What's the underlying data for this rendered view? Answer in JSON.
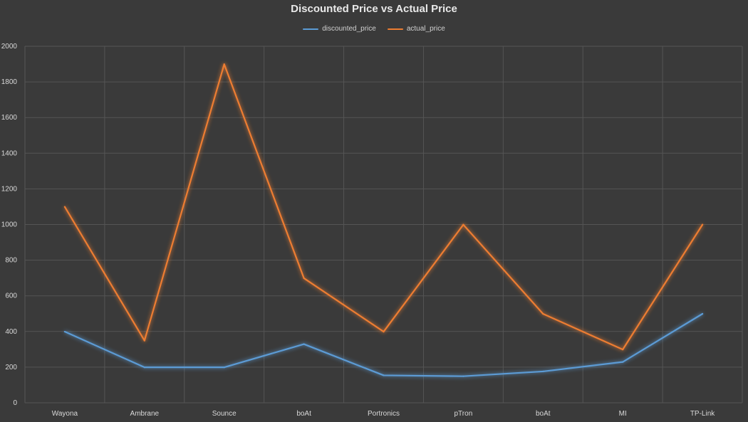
{
  "chart_data": {
    "type": "line",
    "title": "Discounted Price vs Actual Price",
    "xlabel": "",
    "ylabel": "",
    "categories": [
      "Wayona",
      "Ambrane",
      "Sounce",
      "boAt",
      "Portronics",
      "pTron",
      "boAt",
      "MI",
      "TP-Link"
    ],
    "series": [
      {
        "name": "discounted_price",
        "color": "#5b9bd5",
        "values": [
          399,
          199,
          199,
          329,
          154,
          149,
          176,
          229,
          499
        ]
      },
      {
        "name": "actual_price",
        "color": "#ed7d31",
        "values": [
          1099,
          349,
          1899,
          699,
          399,
          999,
          499,
          299,
          999
        ]
      }
    ],
    "ylim": [
      0,
      2000
    ],
    "yticks": [
      0,
      200,
      400,
      600,
      800,
      1000,
      1200,
      1400,
      1600,
      1800,
      2000
    ],
    "grid": true,
    "legend_position": "top"
  },
  "colors": {
    "background": "#3a3a3a",
    "gridline": "#555555",
    "text": "#d9d9d9"
  }
}
